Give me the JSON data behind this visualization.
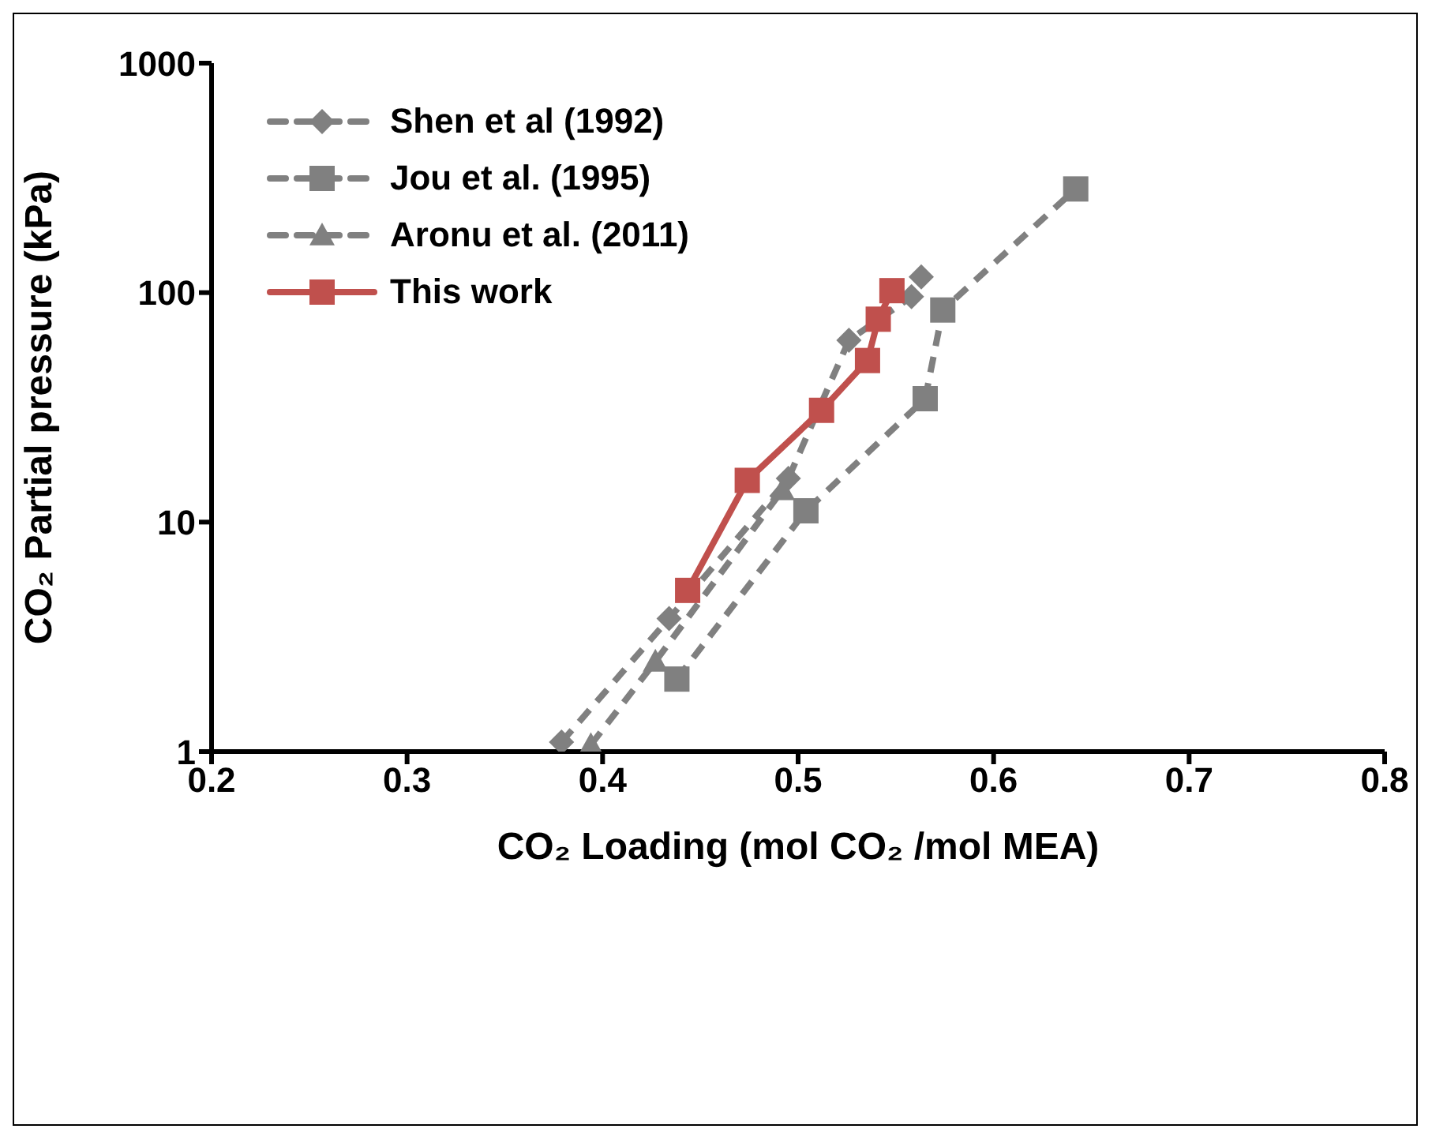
{
  "chart_data": {
    "type": "line",
    "xlabel": "CO₂ Loading (mol CO₂ /mol  MEA)",
    "ylabel": "CO₂ Partial pressure (kPa)",
    "log": "y",
    "xlim": [
      0.2,
      0.8
    ],
    "xticks": [
      0.2,
      0.3,
      0.4,
      0.5,
      0.6,
      0.7,
      0.8
    ],
    "ylim": [
      1,
      1000
    ],
    "yticks": [
      1,
      10,
      100,
      1000
    ],
    "legend": "top left",
    "series": [
      {
        "name": "Shen et al (1992)",
        "color": "#808080",
        "marker": "diamond",
        "line_style": "dashed",
        "x": [
          0.379,
          0.434,
          0.495,
          0.526,
          0.558,
          0.563
        ],
        "values": [
          1.1,
          3.8,
          15.5,
          62,
          96,
          117
        ]
      },
      {
        "name": "Jou et al. (1995)",
        "color": "#808080",
        "marker": "square",
        "line_style": "dashed",
        "x": [
          0.438,
          0.504,
          0.565,
          0.574,
          0.642
        ],
        "values": [
          2.07,
          11.2,
          34.5,
          84,
          283
        ]
      },
      {
        "name": "Aronu et al. (2011)",
        "color": "#808080",
        "marker": "triangle",
        "line_style": "dashed",
        "x": [
          0.394,
          0.427,
          0.492
        ],
        "values": [
          1.07,
          2.47,
          13.8
        ]
      },
      {
        "name": "This work",
        "color": "#c0504d",
        "marker": "square",
        "line_style": "solid",
        "x": [
          0.4435,
          0.474,
          0.512,
          0.5355,
          0.541,
          0.548
        ],
        "values": [
          5.04,
          15.2,
          30.7,
          50.6,
          76.6,
          102
        ]
      }
    ]
  }
}
